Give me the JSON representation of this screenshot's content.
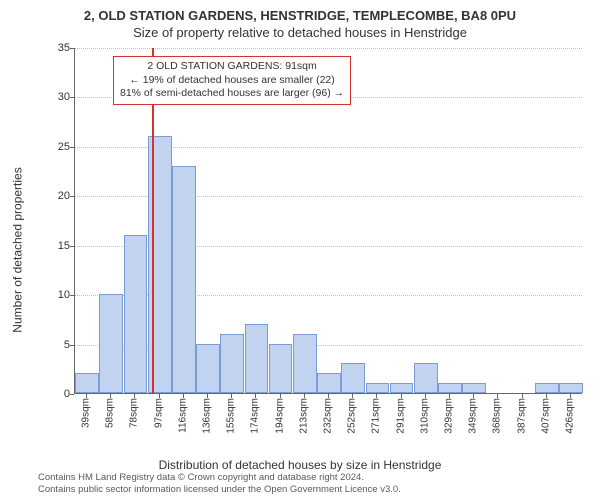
{
  "titles": {
    "line1": "2, OLD STATION GARDENS, HENSTRIDGE, TEMPLECOMBE, BA8 0PU",
    "line2": "Size of property relative to detached houses in Henstridge"
  },
  "axes": {
    "ylabel": "Number of detached properties",
    "xlabel": "Distribution of detached houses by size in Henstridge",
    "ylim": [
      0,
      35
    ],
    "yticks": [
      0,
      5,
      10,
      15,
      20,
      25,
      30,
      35
    ],
    "x_unit_suffix": "sqm"
  },
  "chart": {
    "type": "bar",
    "bar_color": "#c2d3ef",
    "bar_border": "#7a9cd4",
    "grid_color": "#bfbfbf",
    "axis_color": "#666666",
    "categories": [
      39,
      58,
      78,
      97,
      116,
      136,
      155,
      174,
      194,
      213,
      232,
      252,
      271,
      291,
      310,
      329,
      349,
      368,
      387,
      407,
      426
    ],
    "values": [
      2,
      10,
      16,
      26,
      23,
      5,
      6,
      7,
      5,
      6,
      2,
      3,
      1,
      1,
      3,
      1,
      1,
      0,
      0,
      1,
      1
    ]
  },
  "marker": {
    "value_sqm": 91,
    "color": "#d93030",
    "callout": {
      "l1": "2 OLD STATION GARDENS: 91sqm",
      "l2": "← 19% of detached houses are smaller (22)",
      "l3": "81% of semi-detached houses are larger (96) →"
    }
  },
  "footer": {
    "l1": "Contains HM Land Registry data © Crown copyright and database right 2024.",
    "l2": "Contains public sector information licensed under the Open Government Licence v3.0."
  },
  "style": {
    "background": "#ffffff",
    "title_fontsize": 13,
    "label_fontsize": 12,
    "tick_fontsize": 11
  }
}
